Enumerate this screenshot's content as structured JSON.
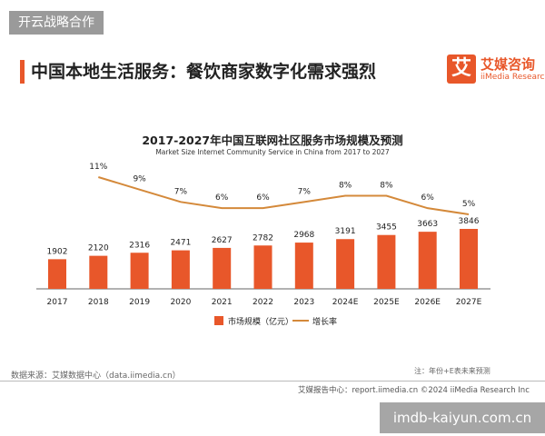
{
  "top_tag": "开云战略合作",
  "header": {
    "title": "中国本地生活服务：餐饮商家数字化需求强烈",
    "logo_mark": "艾",
    "logo_cn": "艾媒咨询",
    "logo_en": "iiMedia Research"
  },
  "chart_data": {
    "type": "bar",
    "title": "2017-2027年中国互联网社区服务市场规模及预测",
    "subtitle": "Market Size Internet Community Service in China from 2017 to 2027",
    "categories": [
      "2017",
      "2018",
      "2019",
      "2020",
      "2021",
      "2022",
      "2023",
      "2024E",
      "2025E",
      "2026E",
      "2027E"
    ],
    "series": [
      {
        "name": "市场规模（亿元）",
        "type": "bar",
        "color": "#e8572a",
        "values": [
          1902,
          2120,
          2316,
          2471,
          2627,
          2782,
          2968,
          3191,
          3455,
          3663,
          3846
        ]
      },
      {
        "name": "增长率",
        "type": "line",
        "color": "#d4893a",
        "values": [
          null,
          11,
          9,
          7,
          6,
          6,
          7,
          8,
          8,
          6,
          5
        ],
        "labels": [
          "",
          "11%",
          "9%",
          "7%",
          "6%",
          "6%",
          "7%",
          "8%",
          "8%",
          "6%",
          "5%"
        ]
      }
    ],
    "legend": "bottom-center",
    "grid": false
  },
  "footer": {
    "source": "数据来源：艾媒数据中心（data.iimedia.cn）",
    "note": "注：年份+E表未来预测",
    "report": "艾媒报告中心：report.iimedia.cn   ©2024  iiMedia Research  Inc",
    "watermark": "imdb-kaiyun.com.cn"
  }
}
